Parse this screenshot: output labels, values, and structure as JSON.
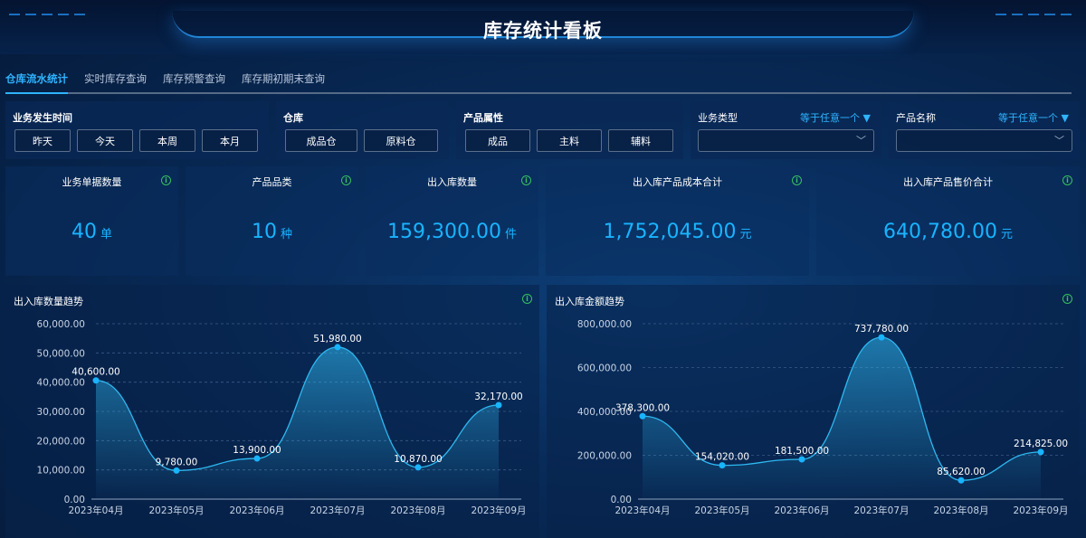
{
  "header": {
    "title": "库存统计看板"
  },
  "tabs": [
    {
      "label": "仓库流水统计",
      "active": true
    },
    {
      "label": "实时库存查询"
    },
    {
      "label": "库存预警查询"
    },
    {
      "label": "库存期初期末查询"
    }
  ],
  "filters": {
    "time": {
      "label": "业务发生时间",
      "options": [
        "昨天",
        "今天",
        "本周",
        "本月"
      ]
    },
    "warehouse": {
      "label": "仓库",
      "options": [
        "成品仓",
        "原料仓"
      ]
    },
    "product_attr": {
      "label": "产品属性",
      "options": [
        "成品",
        "主料",
        "辅料"
      ]
    },
    "biz_type": {
      "label": "业务类型",
      "operator": "等于任意一个 ▼",
      "value": ""
    },
    "product_name": {
      "label": "产品名称",
      "operator": "等于任意一个 ▼",
      "value": ""
    }
  },
  "kpis": [
    {
      "title": "业务单据数量",
      "value": "40",
      "unit": "单"
    },
    {
      "title": "产品品类",
      "value": "10",
      "unit": "种"
    },
    {
      "title": "出入库数量",
      "value": "159,300.00",
      "unit": "件"
    },
    {
      "title": "出入库产品成本合计",
      "value": "1,752,045.00",
      "unit": "元"
    },
    {
      "title": "出入库产品售价合计",
      "value": "640,780.00",
      "unit": "元"
    }
  ],
  "colors": {
    "accent": "#19b4ff",
    "info": "#38c060",
    "line": "#2fb8f0"
  },
  "chart_data": [
    {
      "type": "area",
      "title": "出入库数量趋势",
      "categories": [
        "2023年04月",
        "2023年05月",
        "2023年06月",
        "2023年07月",
        "2023年08月",
        "2023年09月"
      ],
      "values": [
        40600,
        9780,
        13900,
        51980,
        10870,
        32170
      ],
      "labels": [
        "40,600.00",
        "9,780.00",
        "13,900.00",
        "51,980.00",
        "10,870.00",
        "32,170.00"
      ],
      "ylim": [
        0,
        60000
      ],
      "yticks": [
        "0.00",
        "10,000.00",
        "20,000.00",
        "30,000.00",
        "40,000.00",
        "50,000.00",
        "60,000.00"
      ],
      "grid": true,
      "smooth": true
    },
    {
      "type": "area",
      "title": "出入库金额趋势",
      "categories": [
        "2023年04月",
        "2023年05月",
        "2023年06月",
        "2023年07月",
        "2023年08月",
        "2023年09月"
      ],
      "values": [
        378300,
        154020,
        181500,
        737780,
        85620,
        214825
      ],
      "labels": [
        "378,300.00",
        "154,020.00",
        "181,500.00",
        "737,780.00",
        "85,620.00",
        "214,825.00"
      ],
      "ylim": [
        0,
        800000
      ],
      "yticks": [
        "0.00",
        "200,000.00",
        "400,000.00",
        "600,000.00",
        "800,000.00"
      ],
      "grid": true,
      "smooth": true
    }
  ]
}
